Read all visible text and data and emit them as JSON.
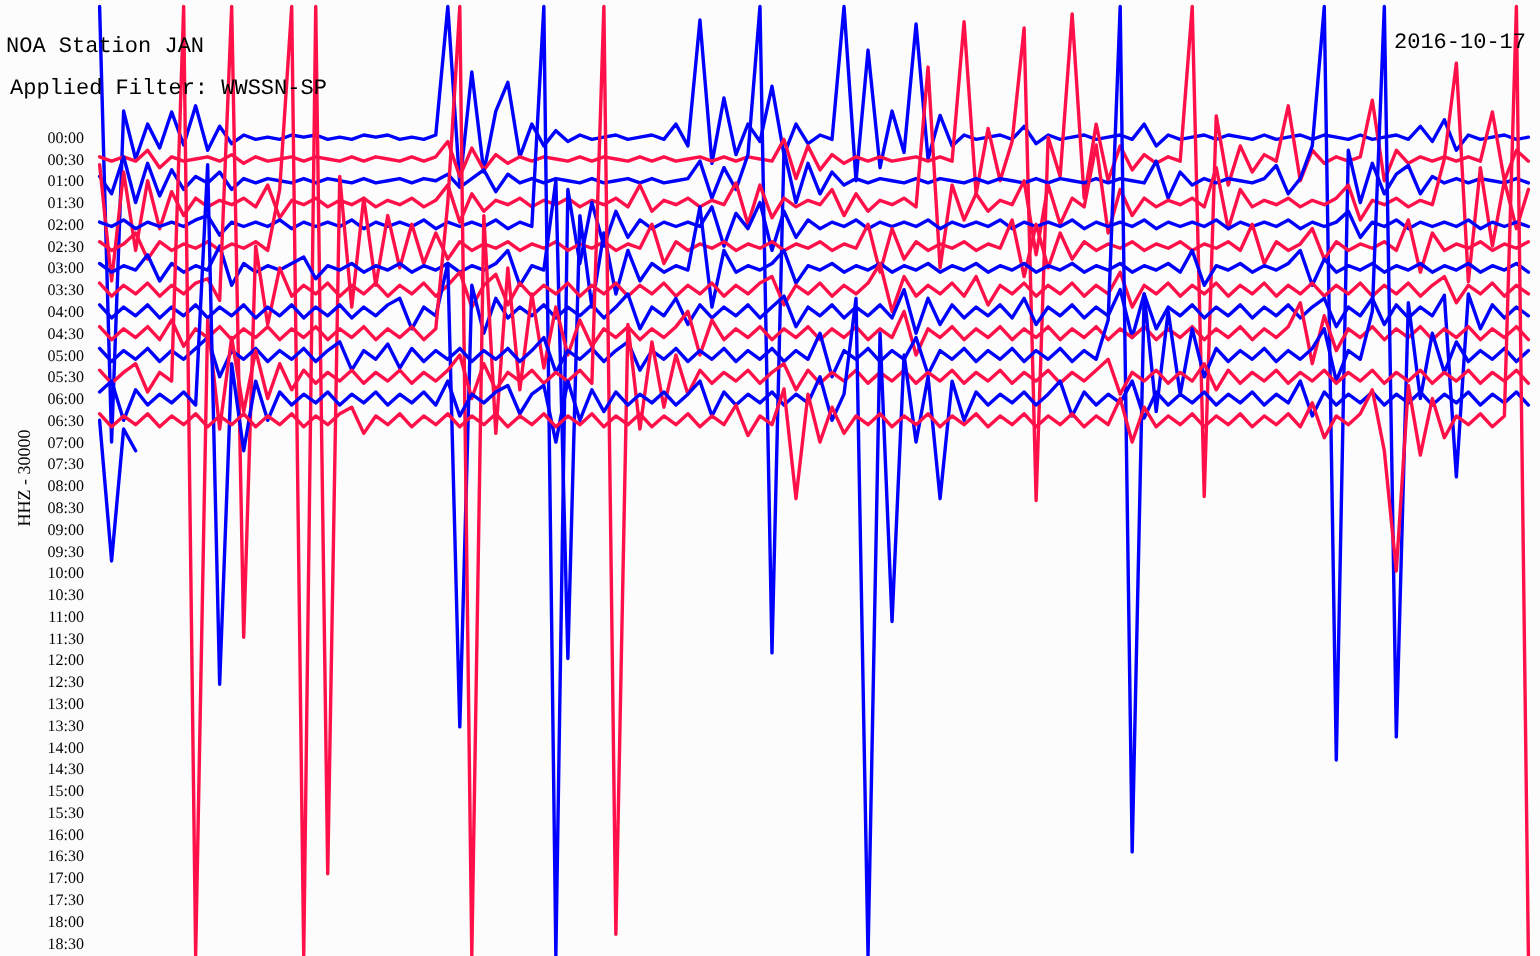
{
  "chart_data": {
    "type": "line",
    "title": "NOA Station JAN",
    "subtitle": "Applied Filter: WWSSN-SP",
    "annotations": [
      "2016-10-17"
    ],
    "ylabel": "HHZ - 30000",
    "grid": false,
    "tick_labels": "y",
    "categories": [
      null,
      null,
      null,
      null,
      null,
      null,
      null,
      null,
      null,
      null,
      null,
      null,
      null,
      null,
      null,
      null,
      null,
      null,
      null,
      null,
      null,
      null,
      null,
      null,
      null,
      null,
      null,
      null,
      null,
      null,
      null,
      null,
      null,
      null,
      null,
      null,
      null,
      null,
      null,
      null,
      null,
      null,
      null,
      null,
      null,
      null,
      null,
      null,
      null,
      null,
      null,
      null,
      null,
      null,
      null,
      null,
      null,
      null,
      null,
      null,
      null,
      null,
      null,
      null,
      null,
      null,
      null,
      null,
      null,
      null,
      null,
      null,
      null,
      null,
      null,
      null,
      null,
      null,
      null,
      null,
      null,
      null,
      null,
      null,
      null,
      null,
      null,
      null,
      null,
      null,
      null,
      null,
      null,
      null,
      null,
      null,
      null,
      null,
      null,
      null,
      null,
      null,
      null,
      null,
      null,
      null,
      null,
      null,
      null,
      null,
      null,
      null,
      null,
      null,
      null,
      null,
      null,
      null,
      null,
      null
    ],
    "ylim": [
      18.8,
      -3.15
    ],
    "yticks": [
      {
        "value": 0,
        "label": "00:00"
      },
      {
        "value": 0.5,
        "label": "00:30"
      },
      {
        "value": 1,
        "label": "01:00"
      },
      {
        "value": 1.5,
        "label": "01:30"
      },
      {
        "value": 2,
        "label": "02:00"
      },
      {
        "value": 2.5,
        "label": "02:30"
      },
      {
        "value": 3,
        "label": "03:00"
      },
      {
        "value": 3.5,
        "label": "03:30"
      },
      {
        "value": 4,
        "label": "04:00"
      },
      {
        "value": 4.5,
        "label": "04:30"
      },
      {
        "value": 5,
        "label": "05:00"
      },
      {
        "value": 5.5,
        "label": "05:30"
      },
      {
        "value": 6,
        "label": "06:00"
      },
      {
        "value": 6.5,
        "label": "06:30"
      },
      {
        "value": 7,
        "label": "07:00"
      },
      {
        "value": 7.5,
        "label": "07:30"
      },
      {
        "value": 8,
        "label": "08:00"
      },
      {
        "value": 8.5,
        "label": "08:30"
      },
      {
        "value": 9,
        "label": "09:00"
      },
      {
        "value": 9.5,
        "label": "09:30"
      },
      {
        "value": 10,
        "label": "10:00"
      },
      {
        "value": 10.5,
        "label": "10:30"
      },
      {
        "value": 11,
        "label": "11:00"
      },
      {
        "value": 11.5,
        "label": "11:30"
      },
      {
        "value": 12,
        "label": "12:00"
      },
      {
        "value": 12.5,
        "label": "12:30"
      },
      {
        "value": 13,
        "label": "13:00"
      },
      {
        "value": 13.5,
        "label": "13:30"
      },
      {
        "value": 14,
        "label": "14:00"
      },
      {
        "value": 14.5,
        "label": "14:30"
      },
      {
        "value": 15,
        "label": "15:00"
      },
      {
        "value": 15.5,
        "label": "15:30"
      },
      {
        "value": 16,
        "label": "16:00"
      },
      {
        "value": 16.5,
        "label": "16:30"
      },
      {
        "value": 17,
        "label": "17:00"
      },
      {
        "value": 17.5,
        "label": "17:30"
      },
      {
        "value": 18,
        "label": "18:00"
      },
      {
        "value": 18.5,
        "label": "18:30"
      }
    ],
    "series": [
      {
        "color": "#0000ff",
        "values": [
          -3.0,
          7.0,
          -0.6,
          0.5,
          -0.3,
          0.25,
          -0.58,
          0.18,
          -0.72,
          0.3,
          -0.25,
          0.15,
          -0.05,
          0.05,
          0.0,
          0.05,
          -0.05,
          0.0,
          -0.05,
          0.05,
          0.0,
          0.05,
          -0.05,
          0.0,
          -0.05,
          0.05,
          0.0,
          0.05,
          -0.05,
          -3.0,
          1.1,
          -1.5,
          0.8,
          -0.6,
          -1.26,
          0.45,
          -0.3,
          0.2,
          -0.15,
          0.1,
          -0.05,
          0.05,
          0.0,
          -0.05,
          0.05,
          0.0,
          -0.05,
          0.05,
          -0.3,
          0.2,
          -2.69,
          0.6,
          -0.9,
          0.4,
          -0.3,
          0.1,
          -1.17,
          0.4,
          -0.3,
          0.15,
          -0.05,
          0.05,
          -3.0,
          1.0,
          -2.0,
          0.7,
          -0.6,
          0.35,
          -2.6,
          0.5,
          -0.5,
          0.2,
          -0.05,
          0.05,
          0.0,
          -0.05,
          0.05,
          -0.25,
          0.15,
          -0.05,
          0.05,
          0.0,
          -0.05,
          0.05,
          0.0,
          -0.05,
          0.05,
          -0.3,
          0.2,
          -0.05,
          0.05,
          0.0,
          -0.05,
          0.05,
          -0.05,
          0.0,
          0.05,
          -0.05,
          0.05,
          0.0,
          -0.05,
          0.05,
          -0.05,
          0.0,
          0.05,
          -0.05,
          0.05,
          0.0,
          -0.05,
          0.05,
          -0.25,
          0.1,
          -0.4,
          0.3,
          -0.05,
          0.05,
          0.0,
          -0.05,
          0.05,
          0.0
        ]
      },
      {
        "color": "#ff1048",
        "values": [
          0.45,
          0.55,
          0.45,
          0.55,
          0.3,
          0.7,
          0.45,
          0.55,
          0.5,
          0.45,
          0.55,
          0.4,
          0.6,
          0.45,
          0.55,
          0.5,
          0.45,
          0.55,
          0.45,
          0.5,
          0.55,
          0.45,
          0.55,
          0.45,
          0.5,
          0.55,
          0.45,
          0.55,
          0.45,
          0.1,
          0.9,
          0.25,
          0.75,
          0.4,
          0.6,
          0.45,
          0.55,
          0.45,
          0.5,
          0.55,
          0.45,
          0.55,
          0.45,
          0.5,
          0.55,
          0.45,
          0.55,
          0.45,
          0.55,
          0.5,
          0.45,
          0.55,
          0.45,
          0.55,
          0.45,
          0.5,
          0.55,
          0.05,
          0.95,
          0.2,
          0.75,
          0.4,
          0.6,
          0.45,
          0.55,
          0.45,
          0.55,
          0.5,
          0.45,
          0.55,
          0.45,
          0.55,
          -2.65,
          1.3,
          -0.2,
          1.0,
          0.1,
          -2.51,
          8.34,
          0.0,
          0.9,
          -2.83,
          1.4,
          -0.3,
          1.0,
          0.2,
          0.75,
          0.4,
          0.6,
          0.45,
          0.55,
          -3.0,
          8.25,
          -0.49,
          1.1,
          0.2,
          0.8,
          0.4,
          0.55,
          -0.72,
          1.0,
          0.3,
          0.6,
          0.45,
          0.55,
          0.45,
          -0.85,
          1.0,
          0.3,
          0.6,
          0.45,
          0.55,
          0.45,
          0.55,
          0.45,
          0.55,
          -0.58,
          1.0,
          0.3,
          0.55
        ]
      },
      {
        "color": "#0000ff",
        "values": [
          0.9,
          1.3,
          0.45,
          1.5,
          0.6,
          1.35,
          0.75,
          1.2,
          0.9,
          1.05,
          0.8,
          1.2,
          0.95,
          1.05,
          0.95,
          1.0,
          1.05,
          0.95,
          1.05,
          0.95,
          1.0,
          1.05,
          0.95,
          1.05,
          1.0,
          0.95,
          1.05,
          0.95,
          1.0,
          0.85,
          1.15,
          0.95,
          0.75,
          1.25,
          0.85,
          1.05,
          0.95,
          1.05,
          0.95,
          1.0,
          1.05,
          0.95,
          1.05,
          1.0,
          0.95,
          1.05,
          0.95,
          1.05,
          1.0,
          0.95,
          0.55,
          1.4,
          0.7,
          1.2,
          0.4,
          -3.0,
          11.84,
          0.3,
          1.5,
          0.6,
          1.3,
          0.8,
          1.1,
          0.95,
          1.05,
          0.95,
          1.0,
          1.05,
          0.95,
          1.05,
          0.95,
          1.0,
          1.05,
          0.95,
          1.05,
          0.95,
          1.0,
          1.05,
          0.95,
          1.05,
          0.95,
          1.0,
          1.05,
          0.95,
          1.05,
          0.95,
          1.0,
          1.05,
          0.55,
          1.4,
          0.8,
          1.1,
          0.95,
          1.05,
          0.95,
          1.0,
          1.05,
          0.95,
          0.65,
          1.3,
          0.95,
          0.2,
          -3.0,
          14.3,
          0.3,
          1.5,
          0.6,
          1.3,
          0.85,
          0.65,
          1.3,
          0.9,
          1.05,
          0.95,
          1.05,
          0.95,
          1.0,
          1.05,
          0.95,
          1.05
        ]
      },
      {
        "color": "#ff1048",
        "values": [
          0.63,
          3.3,
          0.8,
          2.6,
          1.0,
          2.1,
          1.25,
          1.8,
          1.4,
          1.6,
          1.45,
          1.55,
          1.4,
          1.6,
          1.1,
          1.85,
          1.45,
          1.55,
          1.4,
          1.6,
          1.45,
          1.55,
          1.4,
          1.6,
          1.45,
          1.55,
          1.4,
          1.6,
          1.45,
          1.1,
          1.95,
          1.3,
          1.7,
          1.45,
          1.55,
          1.4,
          1.6,
          1.45,
          1.55,
          1.4,
          1.6,
          1.45,
          1.55,
          1.4,
          1.6,
          1.1,
          1.7,
          1.45,
          1.55,
          1.4,
          1.6,
          1.45,
          1.55,
          1.05,
          2.0,
          1.1,
          1.85,
          1.4,
          1.6,
          1.45,
          1.55,
          1.2,
          1.8,
          1.3,
          1.7,
          1.45,
          1.55,
          1.4,
          1.6,
          -1.61,
          3.0,
          1.1,
          1.9,
          1.3,
          1.7,
          1.45,
          1.55,
          1.0,
          2.7,
          1.1,
          2.0,
          1.4,
          1.6,
          0.18,
          2.2,
          1.2,
          1.8,
          1.4,
          1.6,
          1.45,
          1.55,
          1.4,
          1.6,
          0.7,
          2.1,
          1.2,
          1.6,
          1.45,
          1.55,
          1.4,
          1.6,
          1.45,
          1.55,
          1.4,
          1.1,
          1.9,
          1.45,
          1.55,
          1.4,
          1.6,
          1.45,
          1.55,
          0.5,
          -1.7,
          3.32,
          0.7,
          2.5,
          1.0,
          2.1,
          1.2
        ]
      },
      {
        "color": "#0000ff",
        "values": [
          1.95,
          2.05,
          1.9,
          2.1,
          1.95,
          2.05,
          1.95,
          2.05,
          1.9,
          1.8,
          2.25,
          1.95,
          2.05,
          1.95,
          2.05,
          1.9,
          2.1,
          1.95,
          2.05,
          1.95,
          2.05,
          1.9,
          2.1,
          1.95,
          2.05,
          1.95,
          2.05,
          1.9,
          2.1,
          1.95,
          2.05,
          1.95,
          2.05,
          1.9,
          2.1,
          1.95,
          2.05,
          -3.0,
          18.8,
          1.2,
          2.9,
          1.5,
          2.5,
          1.7,
          2.3,
          1.9,
          2.1,
          1.95,
          2.05,
          1.95,
          2.05,
          1.6,
          2.5,
          1.75,
          2.1,
          1.5,
          2.6,
          1.7,
          2.3,
          1.9,
          2.1,
          1.95,
          2.05,
          1.9,
          2.1,
          1.95,
          2.05,
          1.95,
          2.05,
          1.9,
          2.1,
          1.95,
          2.05,
          1.95,
          2.05,
          1.9,
          2.1,
          1.95,
          2.05,
          1.95,
          2.05,
          1.9,
          2.1,
          1.95,
          2.05,
          1.95,
          2.05,
          1.9,
          2.1,
          1.95,
          2.05,
          1.95,
          2.05,
          1.9,
          2.1,
          1.95,
          2.05,
          1.95,
          2.05,
          1.9,
          2.1,
          1.95,
          2.05,
          1.95,
          1.7,
          2.3,
          1.95,
          2.05,
          1.9,
          2.1,
          1.95,
          2.05,
          1.95,
          2.05,
          1.9,
          2.1,
          1.95,
          2.05,
          1.95,
          2.05
        ]
      },
      {
        "color": "#ff1048",
        "values": [
          2.4,
          2.6,
          2.45,
          2.2,
          2.8,
          2.4,
          2.6,
          2.45,
          2.55,
          2.4,
          2.6,
          2.45,
          2.55,
          2.4,
          2.6,
          1.2,
          -3.0,
          18.8,
          -3.0,
          16.91,
          0.9,
          3.9,
          1.4,
          3.4,
          1.8,
          3.0,
          2.0,
          2.9,
          2.2,
          2.8,
          2.4,
          2.6,
          2.45,
          2.55,
          2.4,
          2.6,
          2.45,
          2.55,
          2.4,
          2.6,
          2.45,
          2.55,
          2.4,
          2.6,
          2.45,
          2.55,
          2.0,
          2.9,
          2.4,
          2.6,
          2.45,
          2.55,
          2.4,
          2.6,
          2.45,
          2.55,
          2.4,
          2.6,
          2.45,
          2.55,
          2.4,
          2.6,
          2.45,
          2.55,
          2.0,
          3.1,
          2.1,
          2.8,
          2.4,
          2.6,
          2.45,
          2.55,
          2.4,
          2.6,
          2.45,
          2.55,
          1.9,
          3.2,
          2.0,
          3.0,
          2.2,
          2.8,
          2.4,
          2.6,
          2.45,
          2.55,
          2.4,
          2.6,
          2.45,
          2.55,
          2.4,
          2.6,
          2.45,
          2.55,
          2.4,
          2.6,
          2.0,
          2.9,
          2.4,
          2.6,
          2.45,
          2.1,
          2.8,
          2.4,
          2.6,
          2.45,
          2.55,
          2.4,
          2.6,
          1.9,
          3.1,
          2.2,
          2.6,
          2.45,
          2.55,
          2.4,
          2.6,
          2.45,
          2.55,
          2.4
        ]
      },
      {
        "color": "#0000ff",
        "values": [
          2.9,
          3.1,
          2.95,
          3.05,
          2.7,
          3.3,
          2.9,
          3.1,
          2.95,
          3.05,
          2.5,
          3.4,
          2.9,
          3.1,
          2.95,
          3.05,
          2.9,
          2.75,
          3.25,
          2.95,
          3.05,
          2.9,
          3.1,
          2.95,
          3.05,
          2.9,
          3.1,
          2.95,
          3.05,
          2.9,
          3.1,
          2.95,
          3.05,
          2.9,
          2.6,
          3.4,
          2.95,
          3.05,
          1.0,
          11.97,
          1.8,
          3.9,
          2.2,
          3.6,
          2.6,
          3.3,
          2.9,
          3.1,
          2.95,
          3.05,
          1.6,
          3.9,
          2.6,
          3.1,
          2.95,
          3.05,
          2.9,
          2.6,
          3.35,
          2.95,
          3.05,
          2.9,
          3.1,
          2.95,
          3.05,
          2.9,
          3.1,
          2.95,
          3.05,
          2.9,
          3.1,
          2.95,
          3.05,
          2.9,
          3.1,
          2.95,
          3.05,
          2.9,
          3.1,
          2.95,
          3.05,
          2.9,
          3.1,
          2.95,
          3.05,
          2.9,
          3.1,
          2.95,
          3.05,
          2.9,
          3.1,
          2.6,
          3.4,
          2.95,
          3.05,
          2.9,
          3.1,
          2.95,
          3.05,
          2.9,
          2.6,
          3.4,
          2.8,
          3.1,
          2.95,
          3.05,
          2.9,
          3.1,
          2.95,
          3.05,
          2.9,
          3.1,
          2.95,
          3.05,
          2.9,
          3.1,
          2.95,
          3.05,
          2.9,
          3.1
        ]
      },
      {
        "color": "#ff1048",
        "values": [
          3.35,
          3.65,
          3.4,
          3.6,
          3.35,
          3.65,
          3.4,
          3.6,
          3.35,
          3.25,
          3.75,
          -3.0,
          11.48,
          2.5,
          4.3,
          3.0,
          3.65,
          3.4,
          3.6,
          3.35,
          3.65,
          3.4,
          3.6,
          3.35,
          3.65,
          3.4,
          3.6,
          3.35,
          3.65,
          3.4,
          3.1,
          3.9,
          3.4,
          3.15,
          3.85,
          3.35,
          3.65,
          3.4,
          3.6,
          3.35,
          3.65,
          3.4,
          3.6,
          3.35,
          3.65,
          3.4,
          3.6,
          3.35,
          3.65,
          3.4,
          3.6,
          3.35,
          3.65,
          3.4,
          3.6,
          3.35,
          3.2,
          3.85,
          3.4,
          3.6,
          3.35,
          3.65,
          3.4,
          3.6,
          3.35,
          2.9,
          4.0,
          3.2,
          3.65,
          3.4,
          3.6,
          3.35,
          3.65,
          3.2,
          3.85,
          3.4,
          3.6,
          3.35,
          3.65,
          3.4,
          3.6,
          3.35,
          3.65,
          3.4,
          3.6,
          3.1,
          3.9,
          3.4,
          3.6,
          3.35,
          3.65,
          3.4,
          3.6,
          3.35,
          3.65,
          3.4,
          3.6,
          3.35,
          3.65,
          3.4,
          3.6,
          3.35,
          3.65,
          3.4,
          3.6,
          3.35,
          3.65,
          3.4,
          3.6,
          3.35,
          3.65,
          3.4,
          3.2,
          3.8,
          3.4,
          3.6,
          3.35,
          3.65,
          3.4,
          3.6
        ]
      },
      {
        "color": "#0000ff",
        "values": [
          3.85,
          4.15,
          3.9,
          4.1,
          3.85,
          4.15,
          3.9,
          4.1,
          3.85,
          4.15,
          3.9,
          4.1,
          3.85,
          4.15,
          3.9,
          4.1,
          3.85,
          4.15,
          3.9,
          4.1,
          3.85,
          4.15,
          3.9,
          4.1,
          3.85,
          3.7,
          4.4,
          3.9,
          4.1,
          2.9,
          13.54,
          3.4,
          4.5,
          3.7,
          4.15,
          3.9,
          4.1,
          3.85,
          4.15,
          3.9,
          4.1,
          3.85,
          4.15,
          3.9,
          3.6,
          4.4,
          3.9,
          4.1,
          3.7,
          4.3,
          3.85,
          4.15,
          3.9,
          4.1,
          3.85,
          4.15,
          3.9,
          3.65,
          4.35,
          3.9,
          4.1,
          3.85,
          4.15,
          3.9,
          4.1,
          3.85,
          4.15,
          3.5,
          4.5,
          3.7,
          4.3,
          3.85,
          4.15,
          3.9,
          4.1,
          3.85,
          4.15,
          3.7,
          4.3,
          3.9,
          4.1,
          3.85,
          4.15,
          3.9,
          4.1,
          3.5,
          4.6,
          3.6,
          4.4,
          3.9,
          4.1,
          3.85,
          4.15,
          3.9,
          4.1,
          3.85,
          4.15,
          3.9,
          4.1,
          3.85,
          4.15,
          3.9,
          3.7,
          4.35,
          3.9,
          4.1,
          3.7,
          4.3,
          3.85,
          4.15,
          3.9,
          4.1,
          3.63,
          7.8,
          3.6,
          4.4,
          3.85,
          4.15,
          3.9,
          4.1
        ]
      },
      {
        "color": "#ff1048",
        "values": [
          4.35,
          4.65,
          4.4,
          4.6,
          4.35,
          4.65,
          4.2,
          4.8,
          4.4,
          4.6,
          4.35,
          4.65,
          4.4,
          4.6,
          4.35,
          4.65,
          4.4,
          4.6,
          4.35,
          4.65,
          4.4,
          4.6,
          4.35,
          4.65,
          4.4,
          4.6,
          4.35,
          4.65,
          4.4,
          1.5,
          -3.0,
          18.8,
          1.8,
          6.8,
          3.0,
          5.8,
          3.6,
          5.3,
          3.9,
          5.0,
          4.2,
          4.8,
          4.4,
          4.6,
          4.35,
          4.65,
          4.4,
          4.6,
          4.35,
          4.0,
          5.0,
          4.2,
          4.65,
          4.4,
          4.6,
          4.35,
          4.65,
          4.4,
          4.6,
          4.35,
          4.65,
          4.4,
          4.6,
          4.35,
          4.65,
          4.4,
          4.6,
          4.0,
          5.0,
          4.4,
          4.6,
          4.35,
          4.65,
          4.4,
          4.6,
          4.35,
          4.65,
          4.4,
          4.6,
          4.35,
          4.65,
          4.4,
          4.6,
          4.35,
          4.65,
          4.4,
          4.6,
          4.35,
          4.65,
          4.4,
          4.6,
          4.35,
          4.65,
          4.4,
          4.6,
          4.35,
          4.65,
          4.4,
          4.6,
          4.35,
          3.8,
          5.2,
          4.1,
          4.9,
          4.4,
          4.6,
          4.35,
          4.65,
          4.4,
          4.6,
          4.35,
          4.65,
          4.4,
          4.6,
          4.35,
          4.65,
          4.4,
          4.6,
          4.35,
          4.65
        ]
      },
      {
        "color": "#0000ff",
        "values": [
          4.85,
          5.15,
          4.9,
          5.1,
          4.85,
          5.15,
          4.9,
          5.1,
          4.85,
          4.6,
          5.5,
          4.9,
          5.1,
          4.85,
          5.15,
          4.9,
          5.1,
          4.85,
          5.15,
          4.9,
          4.7,
          5.35,
          4.9,
          5.1,
          4.75,
          5.3,
          4.85,
          5.15,
          4.9,
          5.1,
          4.85,
          5.15,
          4.9,
          5.1,
          4.85,
          5.15,
          4.9,
          4.6,
          5.4,
          4.9,
          5.1,
          4.85,
          5.15,
          4.9,
          4.7,
          5.35,
          4.9,
          5.1,
          4.85,
          5.15,
          4.9,
          5.1,
          4.85,
          5.15,
          4.9,
          5.1,
          4.85,
          5.15,
          4.9,
          5.1,
          4.5,
          5.5,
          4.9,
          5.1,
          4.85,
          5.15,
          4.9,
          5.1,
          4.6,
          5.45,
          4.9,
          5.1,
          4.85,
          5.15,
          4.9,
          5.1,
          4.85,
          5.15,
          4.9,
          5.1,
          4.85,
          5.15,
          4.9,
          5.1,
          4.2,
          -3.0,
          16.41,
          3.6,
          6.3,
          4.0,
          5.9,
          4.4,
          5.5,
          4.85,
          5.15,
          4.9,
          5.1,
          4.85,
          5.15,
          4.9,
          5.1,
          4.85,
          4.4,
          5.6,
          4.9,
          5.1,
          4.0,
          -3.0,
          13.77,
          3.8,
          6.0,
          4.5,
          5.4,
          4.7,
          5.15,
          4.9,
          5.1,
          4.85,
          5.15,
          4.9
        ]
      },
      {
        "color": "#ff1048",
        "values": [
          5.35,
          5.65,
          5.4,
          5.2,
          5.85,
          5.4,
          5.6,
          -3.0,
          18.8,
          4.2,
          6.7,
          4.6,
          6.3,
          4.9,
          6.0,
          5.2,
          5.8,
          5.35,
          5.65,
          5.4,
          5.6,
          5.35,
          5.65,
          5.4,
          5.6,
          5.35,
          5.65,
          5.4,
          5.6,
          5.35,
          5.0,
          6.0,
          5.2,
          5.8,
          5.4,
          5.6,
          5.35,
          5.65,
          5.4,
          5.6,
          5.35,
          5.65,
          -3.0,
          18.3,
          4.3,
          6.7,
          4.7,
          6.2,
          5.0,
          5.9,
          5.35,
          5.65,
          5.4,
          5.6,
          5.35,
          5.65,
          5.4,
          5.2,
          5.8,
          5.35,
          5.65,
          5.4,
          5.6,
          5.35,
          5.65,
          5.4,
          5.6,
          5.35,
          5.65,
          5.4,
          5.6,
          5.35,
          5.65,
          5.4,
          5.6,
          5.35,
          5.65,
          5.4,
          5.6,
          5.35,
          5.65,
          5.4,
          5.6,
          5.35,
          5.1,
          5.9,
          5.4,
          5.6,
          5.35,
          5.65,
          5.4,
          5.6,
          5.2,
          5.8,
          5.35,
          5.65,
          5.4,
          5.6,
          5.35,
          5.65,
          5.4,
          5.6,
          5.35,
          5.65,
          5.4,
          5.6,
          5.35,
          5.65,
          5.4,
          5.6,
          5.35,
          5.65,
          5.4,
          5.6,
          5.35,
          5.65,
          5.4,
          5.6,
          5.35,
          5.65
        ]
      },
      {
        "color": "#0000ff",
        "values": [
          5.85,
          5.6,
          6.5,
          5.8,
          6.15,
          5.9,
          6.1,
          5.85,
          6.15,
          0.63,
          12.56,
          5.2,
          7.2,
          5.6,
          6.5,
          5.85,
          6.15,
          5.9,
          6.1,
          5.85,
          6.15,
          5.9,
          6.1,
          5.85,
          6.15,
          5.9,
          6.1,
          5.85,
          6.15,
          5.6,
          6.4,
          5.9,
          6.1,
          5.85,
          5.7,
          6.35,
          5.9,
          5.7,
          7.0,
          5.6,
          6.5,
          5.8,
          6.3,
          5.85,
          6.15,
          5.9,
          6.1,
          5.85,
          6.15,
          5.9,
          5.6,
          6.4,
          5.85,
          6.15,
          5.9,
          6.1,
          5.85,
          6.15,
          5.9,
          6.1,
          5.5,
          6.5,
          5.9,
          3.7,
          18.8,
          4.5,
          11.12,
          5.0,
          7.0,
          5.5,
          8.3,
          5.6,
          6.5,
          5.85,
          6.15,
          5.9,
          6.1,
          5.85,
          6.15,
          5.9,
          5.6,
          6.4,
          5.85,
          6.15,
          5.9,
          6.1,
          5.6,
          6.45,
          5.85,
          6.15,
          5.9,
          6.1,
          5.85,
          6.15,
          5.9,
          6.1,
          5.85,
          6.15,
          5.9,
          6.1,
          5.6,
          6.4,
          5.85,
          6.15,
          5.9,
          6.1,
          5.85,
          6.15,
          5.9,
          6.1,
          5.85,
          6.15,
          5.9,
          6.1,
          5.85,
          6.15,
          5.9,
          6.1,
          5.85,
          6.15
        ]
      },
      {
        "color": "#ff1048",
        "values": [
          6.35,
          6.65,
          6.4,
          6.6,
          6.35,
          6.65,
          6.4,
          6.6,
          6.35,
          6.65,
          6.4,
          6.6,
          6.35,
          6.65,
          6.4,
          6.6,
          6.35,
          6.65,
          6.4,
          6.6,
          6.35,
          6.2,
          6.8,
          6.4,
          6.6,
          6.35,
          6.65,
          6.4,
          6.6,
          6.35,
          6.65,
          6.4,
          6.6,
          6.35,
          6.65,
          6.4,
          6.6,
          6.35,
          6.65,
          6.4,
          6.6,
          6.35,
          6.65,
          6.4,
          6.6,
          6.35,
          6.65,
          6.4,
          6.6,
          6.35,
          6.65,
          6.4,
          6.6,
          6.15,
          6.85,
          6.4,
          6.6,
          5.78,
          8.3,
          5.9,
          7.0,
          6.2,
          6.8,
          6.4,
          6.6,
          6.35,
          6.65,
          6.4,
          6.6,
          6.35,
          6.65,
          6.4,
          6.6,
          6.35,
          6.65,
          6.4,
          6.6,
          6.35,
          6.65,
          6.4,
          6.6,
          6.35,
          6.65,
          6.4,
          6.6,
          6.0,
          7.0,
          6.2,
          6.65,
          6.4,
          6.6,
          6.35,
          6.65,
          6.4,
          6.6,
          6.35,
          6.65,
          6.4,
          6.6,
          6.35,
          6.65,
          6.1,
          6.9,
          6.4,
          6.6,
          6.35,
          5.8,
          7.2,
          9.96,
          5.7,
          7.3,
          6.0,
          6.9,
          6.4,
          6.6,
          6.35,
          6.65,
          6.4,
          -3.0,
          18.8
        ]
      },
      {
        "color": "#0000ff",
        "values": [
          6.5,
          9.73,
          6.7,
          7.2,
          null,
          null,
          null,
          null,
          null,
          null,
          null,
          null,
          null,
          null,
          null,
          null,
          null,
          null,
          null,
          null,
          null,
          null,
          null,
          null,
          null,
          null,
          null,
          null,
          null,
          null,
          null,
          null,
          null,
          null,
          null,
          null,
          null,
          null,
          null,
          null,
          null,
          null,
          null,
          null,
          null,
          null,
          null,
          null,
          null,
          null,
          null,
          null,
          null,
          null,
          null,
          null,
          null,
          null,
          null,
          null,
          null,
          null,
          null,
          null,
          null,
          null,
          null,
          null,
          null,
          null,
          null,
          null,
          null,
          null,
          null,
          null,
          null,
          null,
          null,
          null,
          null,
          null,
          null,
          null,
          null,
          null,
          null,
          null,
          null,
          null,
          null,
          null,
          null,
          null,
          null,
          null,
          null,
          null,
          null,
          null,
          null,
          null,
          null,
          null,
          null,
          null,
          null,
          null,
          null,
          null,
          null,
          null,
          null,
          null,
          null,
          null,
          null,
          null,
          null,
          null
        ]
      }
    ]
  }
}
